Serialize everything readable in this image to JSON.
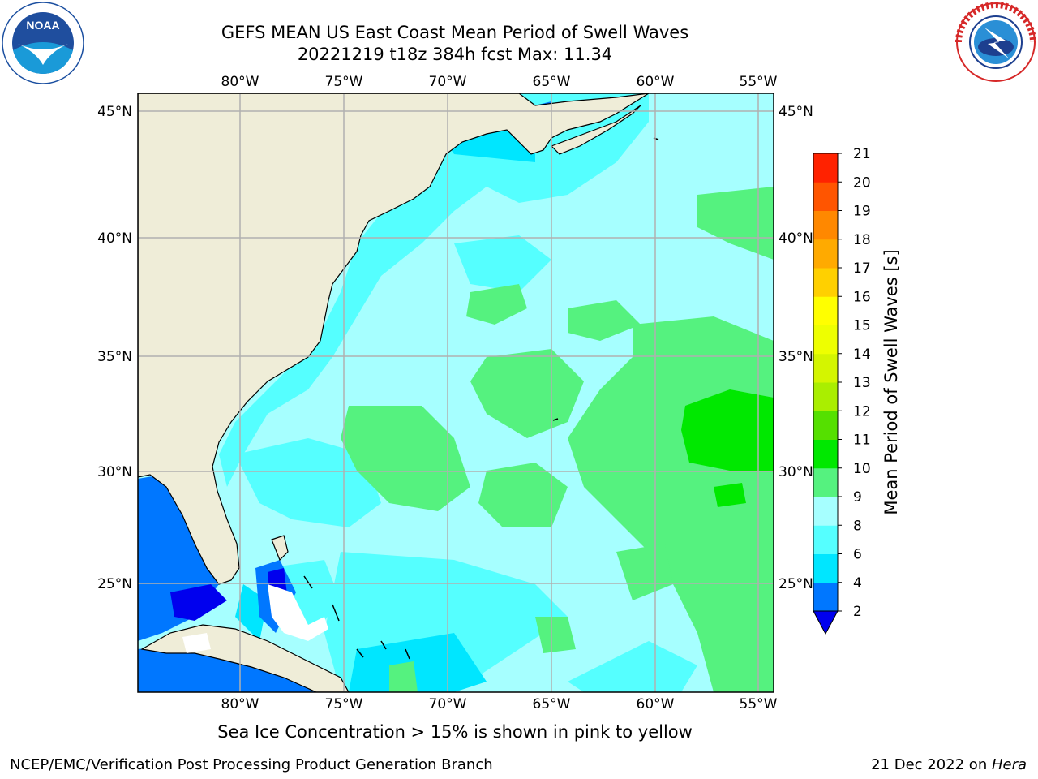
{
  "title": {
    "line1": "GEFS MEAN US East Coast Mean Period of Swell Waves",
    "line2": "20221219 t18z 384h fcst   Max: 11.34"
  },
  "map": {
    "lon_labels": [
      "80°W",
      "75°W",
      "70°W",
      "65°W",
      "60°W",
      "55°W"
    ],
    "lat_labels": [
      "45°N",
      "40°N",
      "35°N",
      "30°N",
      "25°N"
    ],
    "colors": {
      "land": "#efedd8",
      "ocean_base": "#a6ffff",
      "grid": "#b0b0b0"
    }
  },
  "colorbar": {
    "label": "Mean Period of Swell Waves [s]",
    "ticks": [
      "2",
      "4",
      "6",
      "8",
      "9",
      "10",
      "11",
      "12",
      "13",
      "14",
      "15",
      "16",
      "17",
      "18",
      "19",
      "20",
      "21"
    ],
    "colors": [
      "#0077ff",
      "#00e6ff",
      "#55ffff",
      "#a6ffff",
      "#55f27f",
      "#00e800",
      "#55e000",
      "#aaee00",
      "#d4f500",
      "#eeff00",
      "#ffff00",
      "#ffd000",
      "#ffaa00",
      "#ff8800",
      "#ff5500",
      "#ff2200"
    ],
    "under_color": "#0000ee"
  },
  "note": "Sea Ice Concentration > 15% is shown in pink to yellow",
  "footer": {
    "left": "NCEP/EMC/Verification Post Processing Product Generation Branch",
    "right_prefix": "21 Dec 2022 on ",
    "right_host": "Hera"
  }
}
